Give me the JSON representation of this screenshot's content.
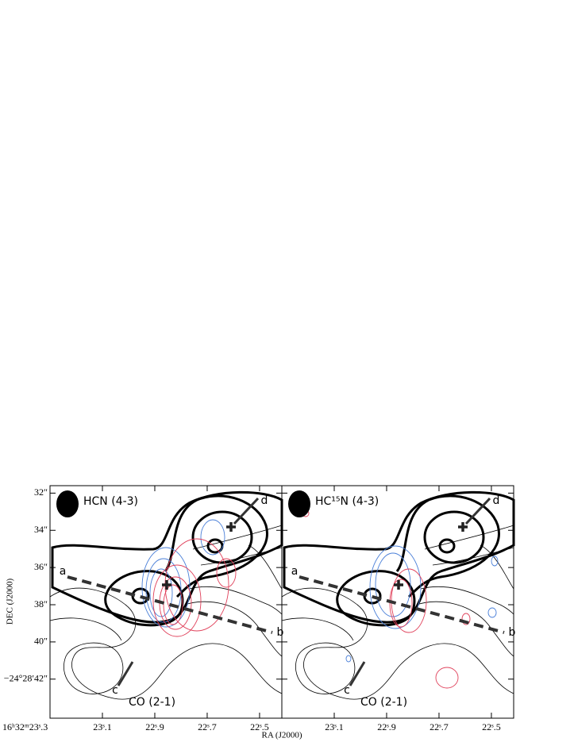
{
  "xlabel": "RA (J2000)",
  "ylabel": "DEC (J2000)",
  "chart_data": [
    {
      "type": "contour",
      "title": "HCN (4-3)",
      "annotations": [
        "CO (2-1)",
        "a",
        "b",
        "c",
        "d"
      ],
      "xlim": [
        23.3,
        22.415
      ],
      "xticks": [
        {
          "value": 23.3,
          "label": "16ʰ32ᵐ23ˢ.3"
        },
        {
          "value": 23.1,
          "label": "23ˢ.1"
        },
        {
          "value": 22.9,
          "label": "22ˢ.9"
        },
        {
          "value": 22.7,
          "label": "22ˢ.7"
        },
        {
          "value": 22.5,
          "label": "22ˢ.5"
        }
      ],
      "ylim": [
        31.6,
        44.1
      ],
      "yticks": [
        {
          "value": 32,
          "label": "32″"
        },
        {
          "value": 34,
          "label": "34″"
        },
        {
          "value": 36,
          "label": "36″"
        },
        {
          "value": 38,
          "label": "38″"
        },
        {
          "value": 40,
          "label": "40″"
        },
        {
          "value": 42,
          "label": "−24°28′42″"
        }
      ]
    },
    {
      "type": "contour",
      "title": "HC¹⁵N (4-3)",
      "annotations": [
        "CO (2-1)",
        "a",
        "b",
        "c",
        "d"
      ],
      "xlim": [
        23.3,
        22.415
      ],
      "xticks": [
        {
          "value": 23.1,
          "label": "23ˢ.1"
        },
        {
          "value": 22.9,
          "label": "22ˢ.9"
        },
        {
          "value": 22.7,
          "label": "22ˢ.7"
        },
        {
          "value": 22.5,
          "label": "22ˢ.5"
        }
      ],
      "ylim": [
        31.6,
        44.1
      ]
    }
  ]
}
